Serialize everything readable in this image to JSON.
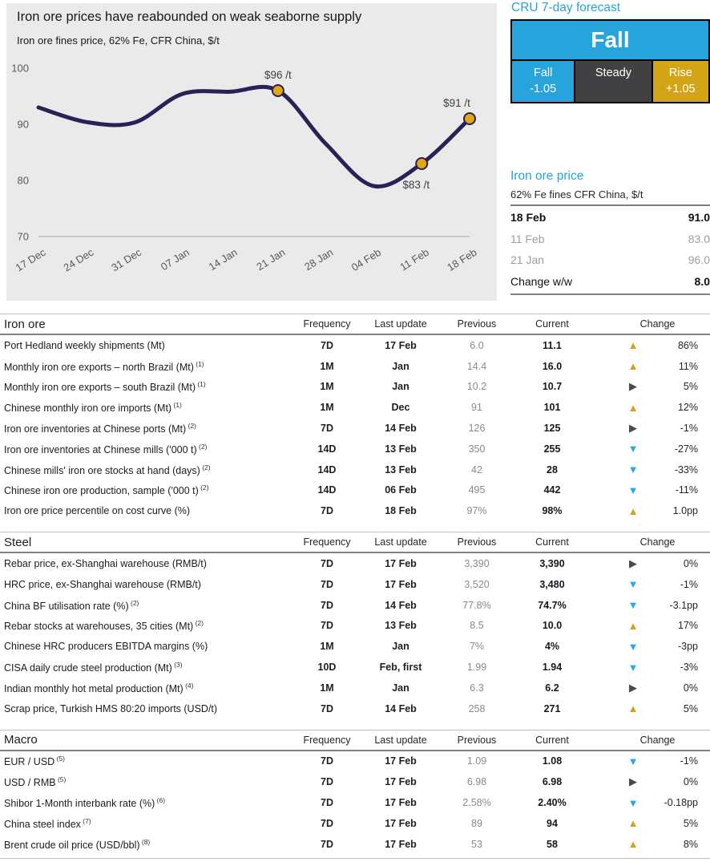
{
  "colors": {
    "accent_blue": "#27a4dc",
    "gold": "#d4a417",
    "dark_gray": "#414042",
    "line_navy": "#2b2154",
    "marker_gold": "#e2a712",
    "triangle_up": "#d2a117",
    "triangle_right": "#4a4a4a",
    "triangle_down": "#29abe2"
  },
  "chart_data": {
    "type": "line",
    "title": "Iron ore prices have reabounded on weak seaborne supply",
    "subtitle": "Iron ore fines price, 62% Fe, CFR China, $/t",
    "x": [
      "17 Dec",
      "24 Dec",
      "31 Dec",
      "07 Jan",
      "14 Jan",
      "21 Jan",
      "28 Jan",
      "04 Feb",
      "11 Feb",
      "18 Feb"
    ],
    "values": [
      93,
      90.4,
      90.3,
      95.4,
      95.8,
      96,
      86.5,
      79,
      83,
      91
    ],
    "ylim": [
      70,
      100
    ],
    "yticks": [
      100,
      90,
      80,
      70
    ],
    "grid": false,
    "legend": "none",
    "line_color": "#2b2154",
    "marker_color": "#e2a712",
    "annotations": [
      {
        "x": "21 Jan",
        "value": 96,
        "label": "$96 /t",
        "position": "above"
      },
      {
        "x": "11 Feb",
        "value": 83,
        "label": "$83 /t",
        "position": "below"
      },
      {
        "x": "18 Feb",
        "value": 91,
        "label": "$91 /t",
        "position": "above"
      }
    ]
  },
  "forecast": {
    "title": "CRU 7-day forecast",
    "main": "Fall",
    "cells": [
      {
        "label": "Fall",
        "value": "-1.05",
        "color": "#27a4dc"
      },
      {
        "label": "Steady",
        "value": "",
        "color": "#414042"
      },
      {
        "label": "Rise",
        "value": "+1.05",
        "color": "#d4a417"
      }
    ]
  },
  "price_box": {
    "title": "Iron ore price",
    "subtitle": "62% Fe fines CFR China, $/t",
    "rows": [
      {
        "label": "18 Feb",
        "value": "91.0",
        "style": "bold"
      },
      {
        "label": "11 Feb",
        "value": "83.0",
        "style": "muted"
      },
      {
        "label": "21 Jan",
        "value": "96.0",
        "style": "muted"
      },
      {
        "label": "Change w/w",
        "value": "8.0",
        "style": "change"
      }
    ]
  },
  "tables": {
    "columns": [
      "Frequency",
      "Last update",
      "Previous",
      "Current",
      "Change"
    ],
    "sections": [
      {
        "name": "Iron ore",
        "rows": [
          {
            "label": "Port Hedland weekly shipments (Mt)",
            "footnote": "",
            "frequency": "7D",
            "last_update": "17 Feb",
            "previous": "6.0",
            "current": "11.1",
            "direction": "up",
            "change": "86%"
          },
          {
            "label": "Monthly iron ore exports – north Brazil (Mt)",
            "footnote": "(1)",
            "frequency": "1M",
            "last_update": "Jan",
            "previous": "14.4",
            "current": "16.0",
            "direction": "up",
            "change": "11%"
          },
          {
            "label": "Monthly iron ore exports – south Brazil (Mt)",
            "footnote": "(1)",
            "frequency": "1M",
            "last_update": "Jan",
            "previous": "10.2",
            "current": "10.7",
            "direction": "right",
            "change": "5%"
          },
          {
            "label": "Chinese monthly iron ore imports (Mt)",
            "footnote": "(1)",
            "frequency": "1M",
            "last_update": "Dec",
            "previous": "91",
            "current": "101",
            "direction": "up",
            "change": "12%"
          },
          {
            "label": "Iron ore inventories at Chinese ports (Mt)",
            "footnote": "(2)",
            "frequency": "7D",
            "last_update": "14 Feb",
            "previous": "126",
            "current": "125",
            "direction": "right",
            "change": "-1%"
          },
          {
            "label": "Iron ore inventories at Chinese mills ('000 t)",
            "footnote": "(2)",
            "frequency": "14D",
            "last_update": "13 Feb",
            "previous": "350",
            "current": "255",
            "direction": "down",
            "change": "-27%"
          },
          {
            "label": "Chinese mills' iron ore stocks at hand (days)",
            "footnote": "(2)",
            "frequency": "14D",
            "last_update": "13 Feb",
            "previous": "42",
            "current": "28",
            "direction": "down",
            "change": "-33%"
          },
          {
            "label": "Chinese iron ore production, sample ('000 t)",
            "footnote": "(2)",
            "frequency": "14D",
            "last_update": "06 Feb",
            "previous": "495",
            "current": "442",
            "direction": "down",
            "change": "-11%"
          },
          {
            "label": "Iron ore price percentile on cost curve (%)",
            "footnote": "",
            "frequency": "7D",
            "last_update": "18 Feb",
            "previous": "97%",
            "current": "98%",
            "direction": "up",
            "change": "1.0pp"
          }
        ]
      },
      {
        "name": "Steel",
        "rows": [
          {
            "label": "Rebar price, ex-Shanghai warehouse (RMB/t)",
            "footnote": "",
            "frequency": "7D",
            "last_update": "17 Feb",
            "previous": "3,390",
            "current": "3,390",
            "direction": "right",
            "change": "0%"
          },
          {
            "label": "HRC price, ex-Shanghai warehouse (RMB/t)",
            "footnote": "",
            "frequency": "7D",
            "last_update": "17 Feb",
            "previous": "3,520",
            "current": "3,480",
            "direction": "down",
            "change": "-1%"
          },
          {
            "label": "China BF utilisation rate (%)",
            "footnote": "(2)",
            "frequency": "7D",
            "last_update": "14 Feb",
            "previous": "77.8%",
            "current": "74.7%",
            "direction": "down",
            "change": "-3.1pp"
          },
          {
            "label": "Rebar stocks at warehouses, 35 cities (Mt)",
            "footnote": "(2)",
            "frequency": "7D",
            "last_update": "13 Feb",
            "previous": "8.5",
            "current": "10.0",
            "direction": "up",
            "change": "17%"
          },
          {
            "label": "Chinese HRC producers EBITDA margins (%)",
            "footnote": "",
            "frequency": "1M",
            "last_update": "Jan",
            "previous": "7%",
            "current": "4%",
            "direction": "down",
            "change": "-3pp"
          },
          {
            "label": "CISA daily crude steel production (Mt)",
            "footnote": "(3)",
            "frequency": "10D",
            "last_update": "Feb, first",
            "previous": "1.99",
            "current": "1.94",
            "direction": "down",
            "change": "-3%"
          },
          {
            "label": "Indian monthly hot metal production (Mt)",
            "footnote": "(4)",
            "frequency": "1M",
            "last_update": "Jan",
            "previous": "6.3",
            "current": "6.2",
            "direction": "right",
            "change": "0%"
          },
          {
            "label": "Scrap price, Turkish HMS 80:20 imports (USD/t)",
            "footnote": "",
            "frequency": "7D",
            "last_update": "14 Feb",
            "previous": "258",
            "current": "271",
            "direction": "up",
            "change": "5%"
          }
        ]
      },
      {
        "name": "Macro",
        "rows": [
          {
            "label": "EUR / USD",
            "footnote": "(5)",
            "frequency": "7D",
            "last_update": "17 Feb",
            "previous": "1.09",
            "current": "1.08",
            "direction": "down",
            "change": "-1%"
          },
          {
            "label": "USD / RMB",
            "footnote": "(5)",
            "frequency": "7D",
            "last_update": "17 Feb",
            "previous": "6.98",
            "current": "6.98",
            "direction": "right",
            "change": "0%"
          },
          {
            "label": "Shibor 1-Month interbank rate (%)",
            "footnote": "(6)",
            "frequency": "7D",
            "last_update": "17 Feb",
            "previous": "2.58%",
            "current": "2.40%",
            "direction": "down",
            "change": "-0.18pp"
          },
          {
            "label": "China steel index",
            "footnote": "(7)",
            "frequency": "7D",
            "last_update": "17 Feb",
            "previous": "89",
            "current": "94",
            "direction": "up",
            "change": "5%"
          },
          {
            "label": "Brent crude oil price (USD/bbl)",
            "footnote": "(8)",
            "frequency": "7D",
            "last_update": "17 Feb",
            "previous": "53",
            "current": "58",
            "direction": "up",
            "change": "8%"
          }
        ]
      }
    ]
  },
  "icons": {
    "up": "▲",
    "right": "▶",
    "down": "▼"
  }
}
